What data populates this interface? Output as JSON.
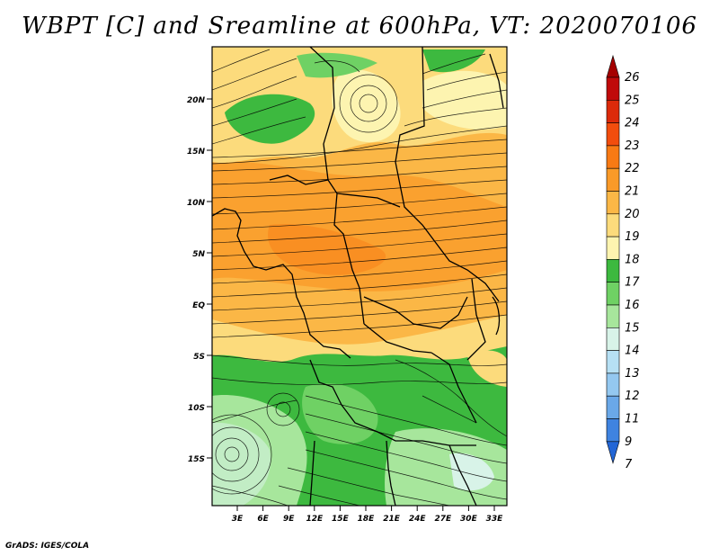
{
  "title": "WBPT [C] and Sreamline at 600hPa, VT: 2020070106",
  "credit": "GrADS: IGES/COLA",
  "map": {
    "lat_labels": [
      "20N",
      "15N",
      "10N",
      "5N",
      "EQ",
      "5S",
      "10S",
      "15S"
    ],
    "lon_labels": [
      "3E",
      "6E",
      "9E",
      "12E",
      "15E",
      "18E",
      "21E",
      "24E",
      "27E",
      "30E",
      "33E"
    ]
  },
  "colorbar": {
    "levels": [
      "26",
      "25",
      "24",
      "23",
      "22",
      "21",
      "20",
      "19",
      "18",
      "17",
      "16",
      "15",
      "14",
      "13",
      "12",
      "11",
      "9",
      "7"
    ],
    "colors": [
      "#a50000",
      "#c00a0a",
      "#dc2a0a",
      "#f24d0d",
      "#f87a14",
      "#fa9a28",
      "#fbb746",
      "#fcdb7c",
      "#fdf4b0",
      "#3db93f",
      "#6fd164",
      "#a7e69c",
      "#d8f3e8",
      "#b6e0f4",
      "#94c8f0",
      "#6aa8e8",
      "#3f83e0",
      "#2366d6"
    ]
  }
}
